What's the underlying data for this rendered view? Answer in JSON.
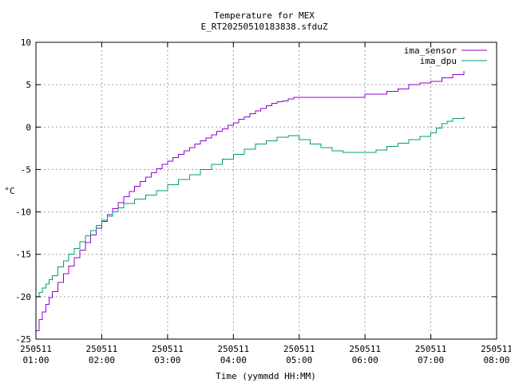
{
  "chart_data": {
    "type": "line",
    "title": "Temperature for MEX",
    "subtitle": "E_RT20250510183838.sfduZ",
    "xlabel": "Time (yymmdd HH:MM)",
    "ylabel": "°C",
    "xlim": [
      "2025-05-11 01:00",
      "2025-05-11 08:00"
    ],
    "ylim": [
      -25,
      10
    ],
    "grid": true,
    "legend_position": "top-right",
    "x_ticks": [
      {
        "date": "250511",
        "time": "01:00"
      },
      {
        "date": "250511",
        "time": "02:00"
      },
      {
        "date": "250511",
        "time": "03:00"
      },
      {
        "date": "250511",
        "time": "04:00"
      },
      {
        "date": "250511",
        "time": "05:00"
      },
      {
        "date": "250511",
        "time": "06:00"
      },
      {
        "date": "250511",
        "time": "07:00"
      },
      {
        "date": "250511",
        "time": "08:00"
      }
    ],
    "y_ticks": [
      "-25",
      "-20",
      "-15",
      "-10",
      "-5",
      "0",
      "5",
      "10"
    ],
    "series": [
      {
        "name": "ima_sensor",
        "color": "#9400d3",
        "x": [
          "01:00",
          "01:03",
          "01:06",
          "01:09",
          "01:12",
          "01:15",
          "01:20",
          "01:25",
          "01:30",
          "01:35",
          "01:40",
          "01:45",
          "01:50",
          "01:55",
          "02:00",
          "02:05",
          "02:10",
          "02:15",
          "02:20",
          "02:25",
          "02:30",
          "02:35",
          "02:40",
          "02:45",
          "02:50",
          "02:55",
          "03:00",
          "03:05",
          "03:10",
          "03:15",
          "03:20",
          "03:25",
          "03:30",
          "03:35",
          "03:40",
          "03:45",
          "03:50",
          "03:55",
          "04:00",
          "04:05",
          "04:10",
          "04:15",
          "04:20",
          "04:25",
          "04:30",
          "04:35",
          "04:40",
          "04:45",
          "04:50",
          "04:55",
          "05:00",
          "05:30",
          "06:00",
          "06:10",
          "06:20",
          "06:30",
          "06:40",
          "06:50",
          "07:00",
          "07:10",
          "07:20",
          "07:30"
        ],
        "values": [
          -24.0,
          -22.7,
          -21.8,
          -20.9,
          -20.1,
          -19.4,
          -18.3,
          -17.3,
          -16.4,
          -15.4,
          -14.5,
          -13.6,
          -12.7,
          -11.9,
          -11.1,
          -10.3,
          -9.6,
          -8.9,
          -8.2,
          -7.6,
          -7.0,
          -6.4,
          -5.9,
          -5.4,
          -4.9,
          -4.4,
          -4.0,
          -3.6,
          -3.2,
          -2.8,
          -2.4,
          -2.0,
          -1.6,
          -1.3,
          -0.9,
          -0.5,
          -0.2,
          0.2,
          0.5,
          0.9,
          1.2,
          1.6,
          1.9,
          2.2,
          2.5,
          2.8,
          3.0,
          3.1,
          3.3,
          3.5,
          3.5,
          3.5,
          3.9,
          3.9,
          4.2,
          4.5,
          5.0,
          5.2,
          5.4,
          5.8,
          6.2,
          6.6
        ]
      },
      {
        "name": "ima_dpu",
        "color": "#009e73",
        "x": [
          "01:00",
          "01:03",
          "01:06",
          "01:09",
          "01:12",
          "01:15",
          "01:20",
          "01:25",
          "01:30",
          "01:35",
          "01:40",
          "01:45",
          "01:50",
          "01:55",
          "02:00",
          "02:05",
          "02:10",
          "02:15",
          "02:20",
          "02:30",
          "02:40",
          "02:50",
          "03:00",
          "03:10",
          "03:20",
          "03:30",
          "03:40",
          "03:50",
          "04:00",
          "04:10",
          "04:20",
          "04:30",
          "04:40",
          "04:50",
          "05:00",
          "05:10",
          "05:20",
          "05:30",
          "05:40",
          "05:50",
          "06:00",
          "06:10",
          "06:20",
          "06:30",
          "06:40",
          "06:50",
          "07:00",
          "07:05",
          "07:10",
          "07:15",
          "07:20",
          "07:30"
        ],
        "values": [
          -20.0,
          -19.5,
          -19.0,
          -18.5,
          -18.0,
          -17.5,
          -16.5,
          -15.8,
          -15.0,
          -14.3,
          -13.5,
          -12.8,
          -12.2,
          -11.6,
          -11.0,
          -10.5,
          -10.0,
          -9.5,
          -9.0,
          -8.5,
          -8.0,
          -7.5,
          -6.8,
          -6.2,
          -5.6,
          -5.0,
          -4.4,
          -3.8,
          -3.2,
          -2.6,
          -2.0,
          -1.6,
          -1.2,
          -1.0,
          -1.5,
          -2.0,
          -2.4,
          -2.8,
          -3.0,
          -3.0,
          -3.0,
          -2.7,
          -2.3,
          -1.9,
          -1.5,
          -1.1,
          -0.7,
          -0.1,
          0.4,
          0.7,
          1.0,
          1.2
        ]
      }
    ]
  }
}
